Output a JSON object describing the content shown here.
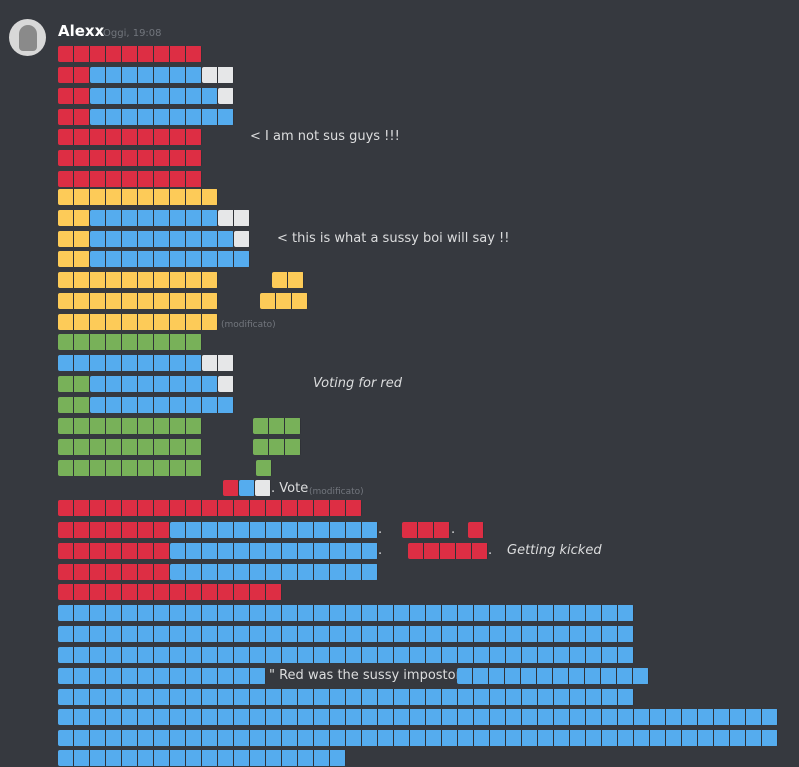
{
  "header": {
    "author": "Alexx",
    "timestamp": "Oggi, 19:08"
  },
  "messages": {
    "not_sus": "< I am not sus guys !!!",
    "sussy_boi": "< this is what a sussy boi will say !!",
    "edited_1": "(modificato)",
    "voting": "Voting for red",
    "vote": ". Vote",
    "edited_2": "(modificato)",
    "dot_1": ".",
    "dot_2": ".",
    "dot_3": ".",
    "dot_4": ".",
    "kicked": "Getting kicked",
    "impostor": "\" Red was the sussy impostor \" ."
  }
}
